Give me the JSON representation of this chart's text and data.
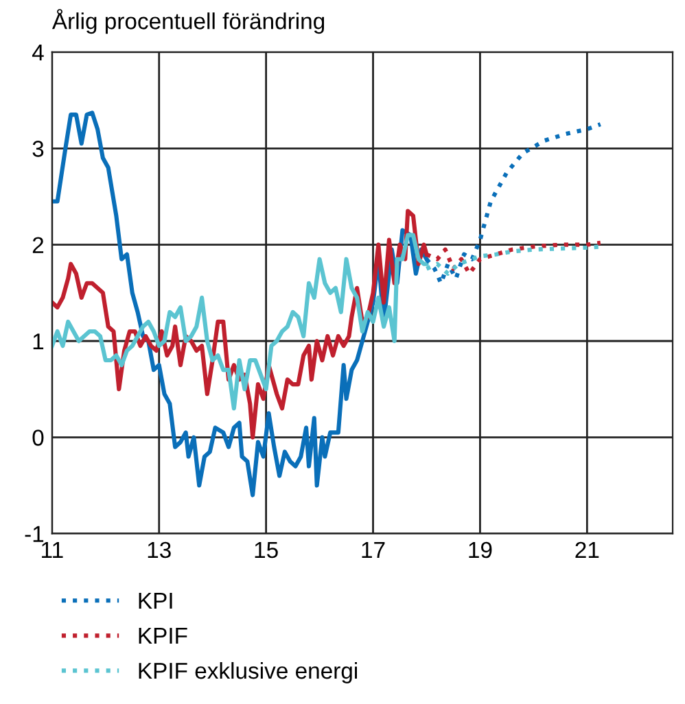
{
  "chart_data": {
    "type": "line",
    "subtitle": "Årlig procentuell förändring",
    "xlim": [
      11,
      22.6
    ],
    "xticks": [
      11,
      13,
      15,
      17,
      19,
      21
    ],
    "ylim": [
      -1,
      4
    ],
    "yticks": [
      -1,
      0,
      1,
      2,
      3,
      4
    ],
    "grid": true,
    "legend": "bottom",
    "series": [
      {
        "color": "#0a6fb9",
        "line_style": "solid",
        "x": [
          11.0,
          11.1,
          11.25,
          11.35,
          11.45,
          11.55,
          11.65,
          11.75,
          11.85,
          11.95,
          12.05,
          12.2,
          12.3,
          12.4,
          12.5,
          12.6,
          12.7,
          12.8,
          12.9,
          13.0,
          13.1,
          13.2,
          13.3,
          13.4,
          13.5,
          13.55,
          13.65,
          13.75,
          13.85,
          13.95,
          14.05,
          14.2,
          14.3,
          14.4,
          14.5,
          14.55,
          14.65,
          14.75,
          14.85,
          14.95,
          15.05,
          15.15,
          15.25,
          15.35,
          15.45,
          15.55,
          15.65,
          15.75,
          15.8,
          15.9,
          15.95,
          16.05,
          16.1,
          16.2,
          16.35,
          16.45,
          16.5,
          16.6,
          16.7,
          16.8,
          16.9,
          17.0,
          17.1,
          17.2,
          17.35,
          17.45,
          17.55,
          17.7,
          17.8,
          17.9,
          18.0
        ],
        "values": [
          2.45,
          2.45,
          3.0,
          3.35,
          3.35,
          3.05,
          3.35,
          3.37,
          3.2,
          2.9,
          2.8,
          2.3,
          1.85,
          1.9,
          1.5,
          1.3,
          1.05,
          1.0,
          0.7,
          0.75,
          0.45,
          0.35,
          -0.1,
          -0.05,
          0.05,
          -0.2,
          0.0,
          -0.5,
          -0.2,
          -0.15,
          0.1,
          0.05,
          -0.1,
          0.1,
          0.15,
          -0.2,
          -0.25,
          -0.6,
          -0.05,
          -0.2,
          0.25,
          -0.1,
          -0.4,
          -0.15,
          -0.25,
          -0.3,
          -0.2,
          0.1,
          -0.3,
          0.2,
          -0.5,
          0.0,
          -0.2,
          0.05,
          0.05,
          0.75,
          0.4,
          0.7,
          0.8,
          1.0,
          1.2,
          1.4,
          1.85,
          1.2,
          1.95,
          1.6,
          2.15,
          2.1,
          1.7,
          1.95,
          1.85
        ]
      },
      {
        "color": "#c0202e",
        "line_style": "solid",
        "x": [
          11.0,
          11.1,
          11.2,
          11.3,
          11.35,
          11.45,
          11.55,
          11.65,
          11.75,
          11.85,
          11.95,
          12.05,
          12.15,
          12.25,
          12.35,
          12.45,
          12.55,
          12.65,
          12.75,
          12.85,
          12.95,
          13.05,
          13.15,
          13.25,
          13.3,
          13.4,
          13.5,
          13.6,
          13.7,
          13.8,
          13.9,
          14.0,
          14.1,
          14.2,
          14.3,
          14.4,
          14.5,
          14.6,
          14.7,
          14.75,
          14.85,
          14.95,
          15.05,
          15.2,
          15.3,
          15.4,
          15.5,
          15.6,
          15.7,
          15.8,
          15.85,
          15.95,
          16.05,
          16.15,
          16.25,
          16.35,
          16.45,
          16.55,
          16.6,
          16.7,
          16.8,
          16.9,
          17.0,
          17.1,
          17.2,
          17.3,
          17.4,
          17.5,
          17.6,
          17.65,
          17.75,
          17.85,
          17.95,
          18.0
        ],
        "values": [
          1.4,
          1.35,
          1.45,
          1.65,
          1.8,
          1.7,
          1.45,
          1.6,
          1.6,
          1.55,
          1.5,
          1.15,
          1.1,
          0.5,
          0.9,
          1.1,
          1.1,
          0.95,
          1.05,
          0.95,
          0.9,
          1.1,
          0.85,
          0.95,
          1.15,
          0.75,
          1.05,
          1.0,
          0.9,
          0.95,
          0.45,
          0.8,
          1.2,
          1.2,
          0.6,
          0.75,
          0.6,
          0.65,
          0.35,
          0.0,
          0.55,
          0.4,
          0.75,
          0.45,
          0.3,
          0.6,
          0.55,
          0.55,
          0.85,
          0.95,
          0.6,
          1.0,
          0.8,
          1.05,
          0.85,
          1.05,
          0.95,
          1.05,
          1.25,
          1.55,
          1.2,
          1.25,
          1.5,
          2.0,
          1.4,
          2.05,
          1.6,
          2.0,
          1.85,
          2.35,
          2.3,
          1.8,
          2.0,
          1.9
        ]
      },
      {
        "color": "#5bc4d1",
        "line_style": "solid",
        "x": [
          11.0,
          11.1,
          11.2,
          11.3,
          11.4,
          11.5,
          11.6,
          11.7,
          11.8,
          11.9,
          12.0,
          12.1,
          12.2,
          12.3,
          12.4,
          12.5,
          12.6,
          12.7,
          12.8,
          12.9,
          13.0,
          13.1,
          13.2,
          13.3,
          13.4,
          13.5,
          13.6,
          13.7,
          13.8,
          13.9,
          14.0,
          14.1,
          14.2,
          14.3,
          14.4,
          14.5,
          14.6,
          14.7,
          14.8,
          14.9,
          15.0,
          15.1,
          15.2,
          15.3,
          15.4,
          15.5,
          15.6,
          15.7,
          15.8,
          15.9,
          16.0,
          16.1,
          16.2,
          16.3,
          16.4,
          16.5,
          16.6,
          16.7,
          16.8,
          16.9,
          17.0,
          17.1,
          17.2,
          17.3,
          17.4,
          17.45,
          17.55,
          17.65,
          17.75,
          17.85,
          17.95,
          18.0
        ],
        "values": [
          0.95,
          1.1,
          0.95,
          1.2,
          1.1,
          1.0,
          1.05,
          1.1,
          1.1,
          1.05,
          0.8,
          0.8,
          0.85,
          0.75,
          0.9,
          0.95,
          1.05,
          1.15,
          1.2,
          1.1,
          0.95,
          1.0,
          1.3,
          1.25,
          1.35,
          1.0,
          1.05,
          1.15,
          1.45,
          1.0,
          0.8,
          0.85,
          0.7,
          0.7,
          0.3,
          0.8,
          0.5,
          0.8,
          0.8,
          0.65,
          0.5,
          0.95,
          1.0,
          1.1,
          1.15,
          1.3,
          1.25,
          1.05,
          1.6,
          1.45,
          1.85,
          1.6,
          1.5,
          1.55,
          1.3,
          1.85,
          1.55,
          1.45,
          1.1,
          1.3,
          1.2,
          1.45,
          1.15,
          1.35,
          1.0,
          1.85,
          1.85,
          2.1,
          2.1,
          1.85,
          1.8,
          1.8
        ]
      },
      {
        "name": "KPI",
        "color": "#0a6fb9",
        "line_style": "dotted",
        "x": [
          18.0,
          18.15,
          18.27,
          18.4,
          18.55,
          18.7,
          18.85,
          19.0,
          19.2,
          19.5,
          19.8,
          20.2,
          20.6,
          21.0,
          21.25
        ],
        "values": [
          1.85,
          1.75,
          1.6,
          1.8,
          1.65,
          1.9,
          1.85,
          2.05,
          2.45,
          2.75,
          2.95,
          3.08,
          3.15,
          3.2,
          3.25
        ]
      },
      {
        "name": "KPIF",
        "color": "#c0202e",
        "line_style": "dotted",
        "x": [
          18.0,
          18.2,
          18.35,
          18.5,
          18.65,
          18.8,
          19.0,
          19.3,
          19.6,
          20.0,
          20.5,
          21.0,
          21.25
        ],
        "values": [
          1.9,
          1.85,
          1.95,
          1.75,
          1.85,
          1.7,
          1.85,
          1.9,
          1.95,
          1.98,
          2.0,
          2.0,
          2.02
        ]
      },
      {
        "name": "KPIF exklusive energi",
        "color": "#5bc4d1",
        "line_style": "dotted",
        "x": [
          18.0,
          18.2,
          18.4,
          18.6,
          19.0,
          19.3,
          19.6,
          20.0,
          20.5,
          21.0,
          21.25
        ],
        "values": [
          1.75,
          1.8,
          1.7,
          1.8,
          1.88,
          1.9,
          1.93,
          1.95,
          1.96,
          1.97,
          1.98
        ]
      }
    ]
  }
}
